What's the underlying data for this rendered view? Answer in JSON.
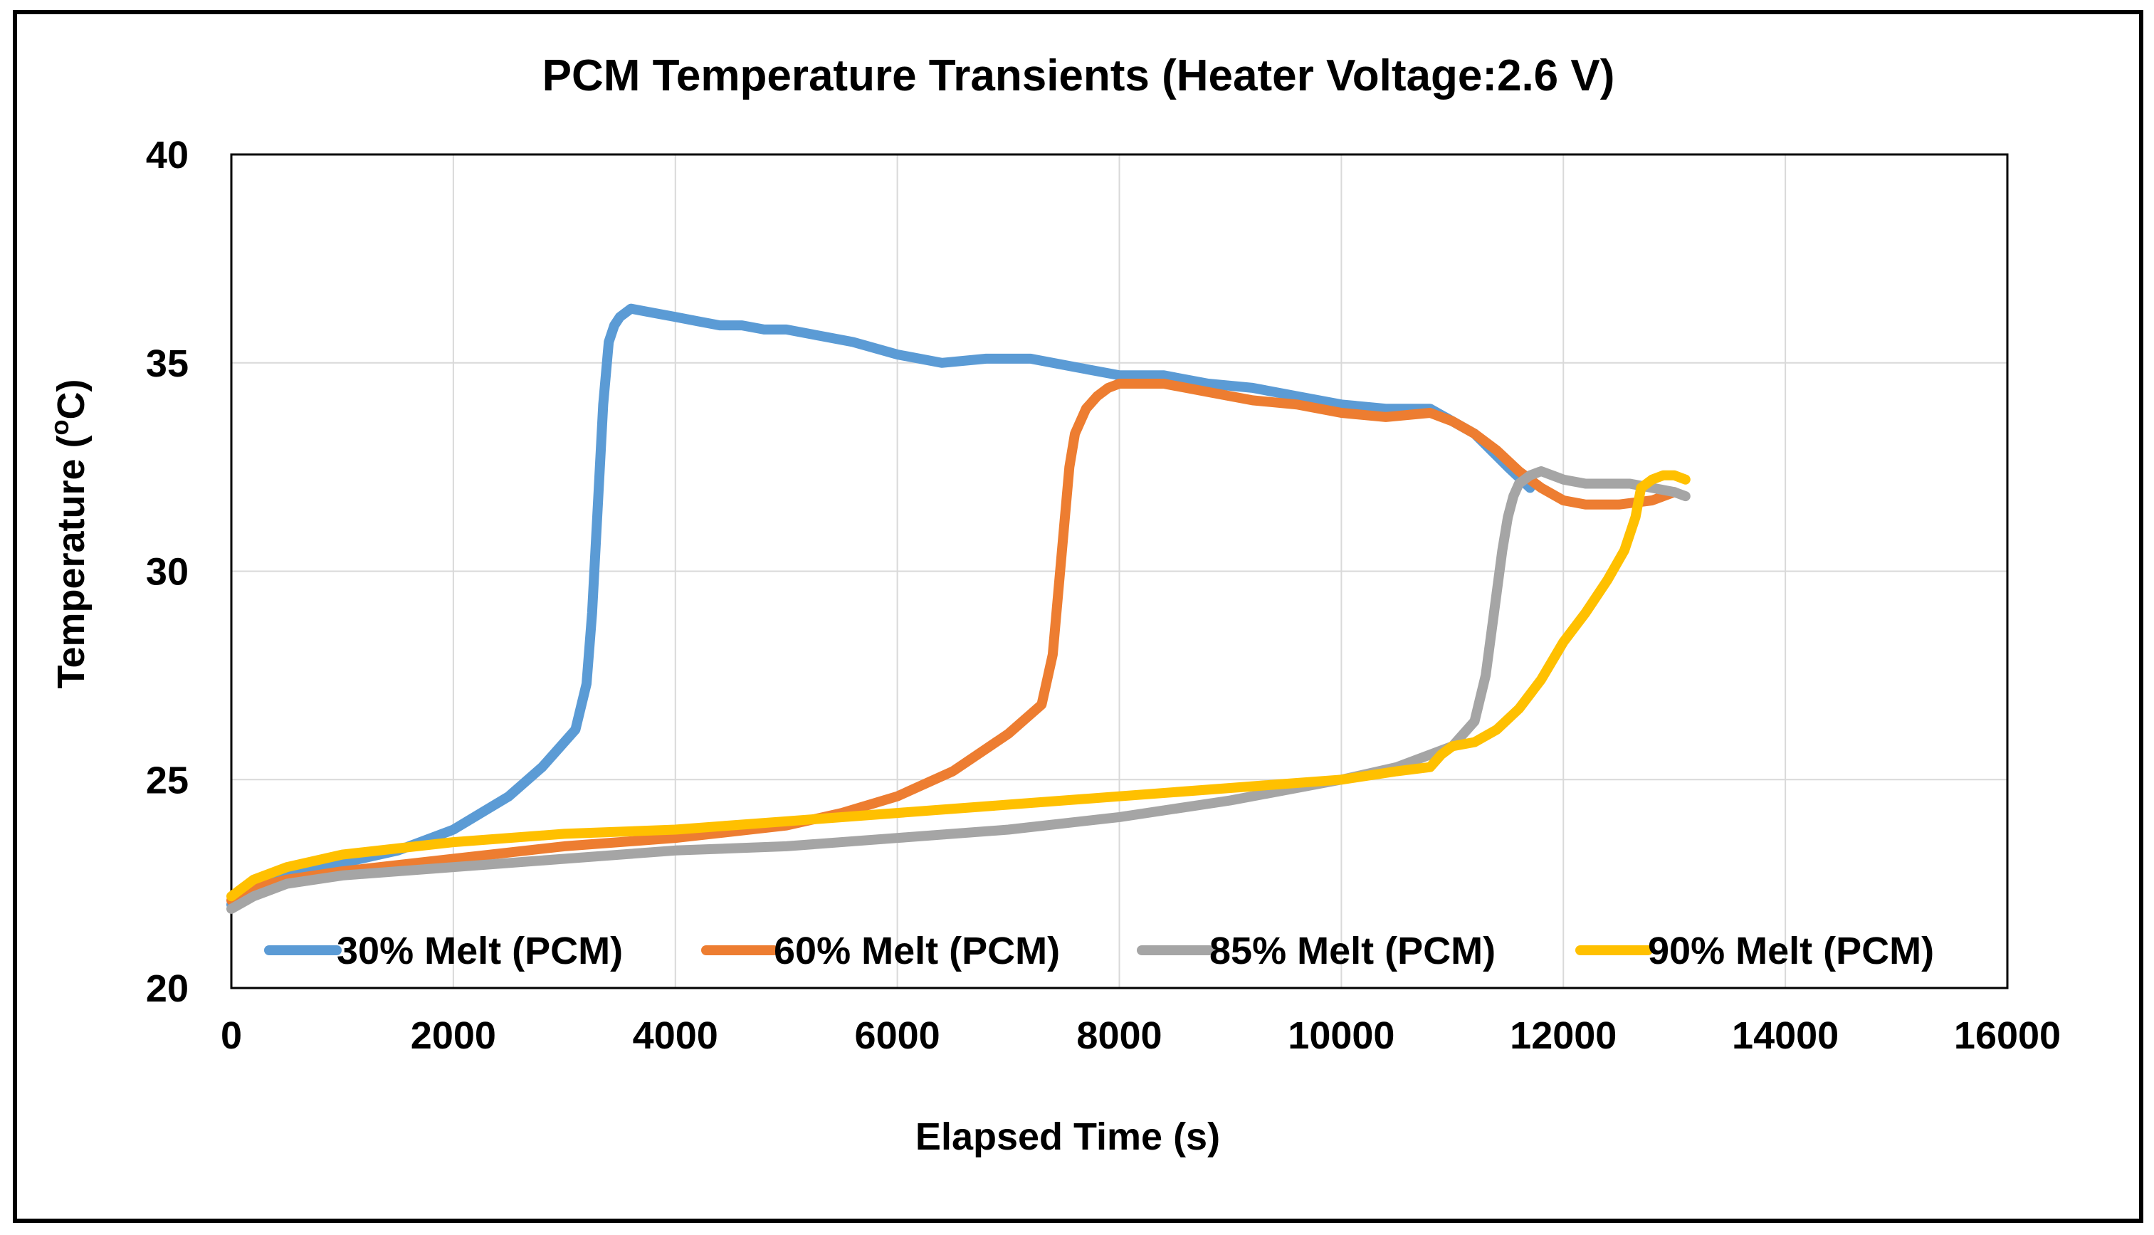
{
  "chart_data": {
    "type": "line",
    "title": "PCM Temperature Transients (Heater Voltage:2.6 V)",
    "xlabel": "Elapsed Time (s)",
    "ylabel_main": "Temperature (",
    "ylabel_sup": "o",
    "ylabel_end": "C)",
    "xlim": [
      0,
      16000
    ],
    "ylim": [
      20,
      40
    ],
    "x_ticks": [
      0,
      2000,
      4000,
      6000,
      8000,
      10000,
      12000,
      14000,
      16000
    ],
    "x_tick_labels": [
      "0",
      "2000",
      "4000",
      "6000",
      "8000",
      "10000",
      "12000",
      "14000",
      "16000"
    ],
    "y_ticks": [
      20,
      25,
      30,
      35,
      40
    ],
    "y_tick_labels": [
      "20",
      "25",
      "30",
      "35",
      "40"
    ],
    "grid": true,
    "legend_position": "bottom-inside",
    "series": [
      {
        "name": "30% Melt (PCM)",
        "color": "#5B9BD5",
        "x": [
          0,
          200,
          500,
          1000,
          1500,
          2000,
          2500,
          2800,
          3100,
          3200,
          3250,
          3300,
          3350,
          3400,
          3450,
          3500,
          3600,
          3800,
          4000,
          4200,
          4400,
          4600,
          4800,
          5000,
          5200,
          5400,
          5600,
          6000,
          6400,
          6800,
          7200,
          7600,
          8000,
          8400,
          8800,
          9200,
          9600,
          10000,
          10400,
          10800,
          11200,
          11500,
          11700
        ],
        "y": [
          22.0,
          22.5,
          22.8,
          23.0,
          23.3,
          23.8,
          24.6,
          25.3,
          26.2,
          27.3,
          29.0,
          31.5,
          34.0,
          35.5,
          35.9,
          36.1,
          36.3,
          36.2,
          36.1,
          36.0,
          35.9,
          35.9,
          35.8,
          35.8,
          35.7,
          35.6,
          35.5,
          35.2,
          35.0,
          35.1,
          35.1,
          34.9,
          34.7,
          34.7,
          34.5,
          34.4,
          34.2,
          34.0,
          33.9,
          33.9,
          33.3,
          32.5,
          32.0
        ]
      },
      {
        "name": "60% Melt (PCM)",
        "color": "#ED7D31",
        "x": [
          0,
          200,
          500,
          1000,
          2000,
          3000,
          4000,
          5000,
          5500,
          6000,
          6500,
          7000,
          7300,
          7400,
          7450,
          7500,
          7550,
          7600,
          7700,
          7800,
          7900,
          8000,
          8200,
          8400,
          8800,
          9200,
          9600,
          10000,
          10400,
          10800,
          11000,
          11200,
          11400,
          11600,
          11800,
          12000,
          12200,
          12500,
          12800,
          13000
        ],
        "y": [
          22.1,
          22.4,
          22.6,
          22.8,
          23.1,
          23.4,
          23.6,
          23.9,
          24.2,
          24.6,
          25.2,
          26.1,
          26.8,
          28.0,
          29.5,
          31.0,
          32.5,
          33.3,
          33.9,
          34.2,
          34.4,
          34.5,
          34.5,
          34.5,
          34.3,
          34.1,
          34.0,
          33.8,
          33.7,
          33.8,
          33.6,
          33.3,
          32.9,
          32.4,
          32.0,
          31.7,
          31.6,
          31.6,
          31.7,
          31.9
        ]
      },
      {
        "name": "85% Melt (PCM)",
        "color": "#A5A5A5",
        "x": [
          0,
          200,
          500,
          1000,
          2000,
          3000,
          4000,
          5000,
          6000,
          7000,
          8000,
          9000,
          10000,
          10500,
          11000,
          11200,
          11300,
          11400,
          11450,
          11500,
          11550,
          11600,
          11700,
          11800,
          11900,
          12000,
          12200,
          12400,
          12600,
          12800,
          13000,
          13100
        ],
        "y": [
          21.9,
          22.2,
          22.5,
          22.7,
          22.9,
          23.1,
          23.3,
          23.4,
          23.6,
          23.8,
          24.1,
          24.5,
          25.0,
          25.3,
          25.8,
          26.4,
          27.5,
          29.5,
          30.5,
          31.3,
          31.8,
          32.1,
          32.3,
          32.4,
          32.3,
          32.2,
          32.1,
          32.1,
          32.1,
          32.0,
          31.9,
          31.8
        ]
      },
      {
        "name": "90% Melt (PCM)",
        "color": "#FFC000",
        "x": [
          0,
          200,
          500,
          1000,
          2000,
          3000,
          4000,
          5000,
          6000,
          7000,
          8000,
          9000,
          10000,
          10500,
          10800,
          10900,
          11000,
          11200,
          11400,
          11600,
          11800,
          12000,
          12200,
          12400,
          12550,
          12650,
          12700,
          12800,
          12900,
          13000,
          13100
        ],
        "y": [
          22.2,
          22.6,
          22.9,
          23.2,
          23.5,
          23.7,
          23.8,
          24.0,
          24.2,
          24.4,
          24.6,
          24.8,
          25.0,
          25.2,
          25.3,
          25.6,
          25.8,
          25.9,
          26.2,
          26.7,
          27.4,
          28.3,
          29.0,
          29.8,
          30.5,
          31.3,
          32.0,
          32.2,
          32.3,
          32.3,
          32.2
        ]
      }
    ]
  }
}
